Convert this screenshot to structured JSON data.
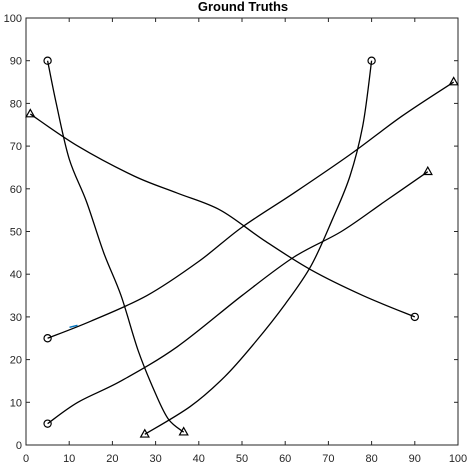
{
  "chart_data": {
    "type": "line",
    "title": "Ground Truths",
    "xlabel": "",
    "ylabel": "",
    "xlim": [
      0,
      100
    ],
    "ylim": [
      0,
      100
    ],
    "xticks": [
      0,
      10,
      20,
      30,
      40,
      50,
      60,
      70,
      80,
      90,
      100
    ],
    "yticks": [
      0,
      10,
      20,
      30,
      40,
      50,
      60,
      70,
      80,
      90,
      100
    ],
    "grid": false,
    "legend": "none",
    "line_color": "#000000",
    "accent_color": "#0072BD",
    "start_marker": "circle",
    "end_marker": "triangle",
    "series": [
      {
        "x": [
          5,
          7,
          10,
          14,
          18,
          22,
          26,
          30,
          33,
          36.5
        ],
        "y": [
          90,
          80,
          67,
          57,
          45,
          35,
          22,
          12,
          6,
          3
        ]
      },
      {
        "x": [
          80,
          78,
          75,
          71,
          66,
          60,
          53,
          46,
          38,
          27.5
        ],
        "y": [
          90,
          75,
          63,
          53,
          42,
          33,
          24,
          16,
          9,
          2.5
        ]
      },
      {
        "x": [
          5,
          15,
          28,
          40,
          50,
          62,
          75,
          87,
          99
        ],
        "y": [
          25,
          29,
          35,
          43,
          51,
          59,
          68,
          77,
          85
        ]
      },
      {
        "x": [
          5,
          12,
          22,
          35,
          50,
          62,
          73,
          83,
          93
        ],
        "y": [
          5,
          10,
          15,
          23,
          35,
          44,
          50,
          57,
          64
        ]
      },
      {
        "x": [
          90,
          78,
          66,
          55,
          45,
          35,
          25,
          12,
          1
        ],
        "y": [
          30,
          35,
          41,
          48,
          55,
          59,
          63,
          70,
          77.5
        ]
      }
    ]
  }
}
